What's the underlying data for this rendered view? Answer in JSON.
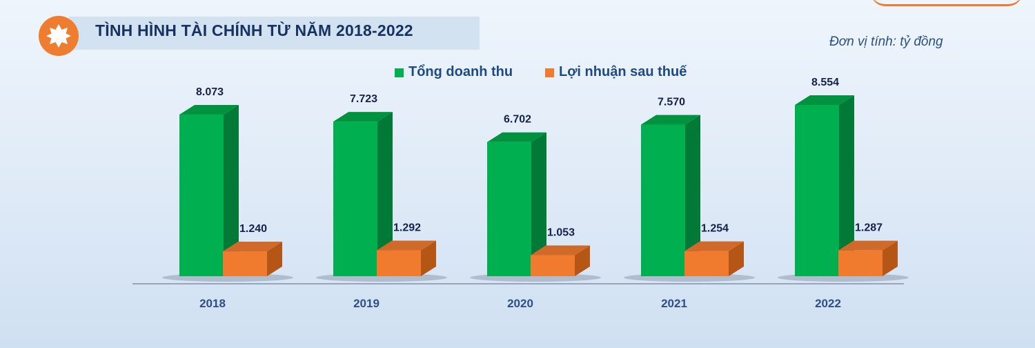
{
  "header": {
    "title": "TÌNH HÌNH TÀI CHÍNH TỪ NĂM 2018-2022",
    "unit_note": "Đơn vị tính: tỷ đồng",
    "badge_icon": "star-badge-icon"
  },
  "colors": {
    "revenue_front": "#00b050",
    "revenue_side": "#007a36",
    "revenue_top": "#00923f",
    "profit_front": "#f07a2e",
    "profit_side": "#b55617",
    "profit_top": "#d06a2a",
    "badge": "#ef7d2f",
    "title_text": "#16325f"
  },
  "chart_data": {
    "type": "bar",
    "categories": [
      "2018",
      "2019",
      "2020",
      "2021",
      "2022"
    ],
    "series": [
      {
        "name": "Tổng doanh thu",
        "values": [
          8073,
          7723,
          6702,
          7570,
          8554
        ],
        "labels": [
          "8.073",
          "7.723",
          "6.702",
          "7.570",
          "8.554"
        ]
      },
      {
        "name": "Lợi nhuận sau thuế",
        "values": [
          1240,
          1292,
          1053,
          1254,
          1287
        ],
        "labels": [
          "1.240",
          "1.292",
          "1.053",
          "1.254",
          "1.287"
        ]
      }
    ],
    "ylim": [
      0,
      8554
    ],
    "legend_position": "top-center",
    "grid": false,
    "style": "3d-bar"
  }
}
